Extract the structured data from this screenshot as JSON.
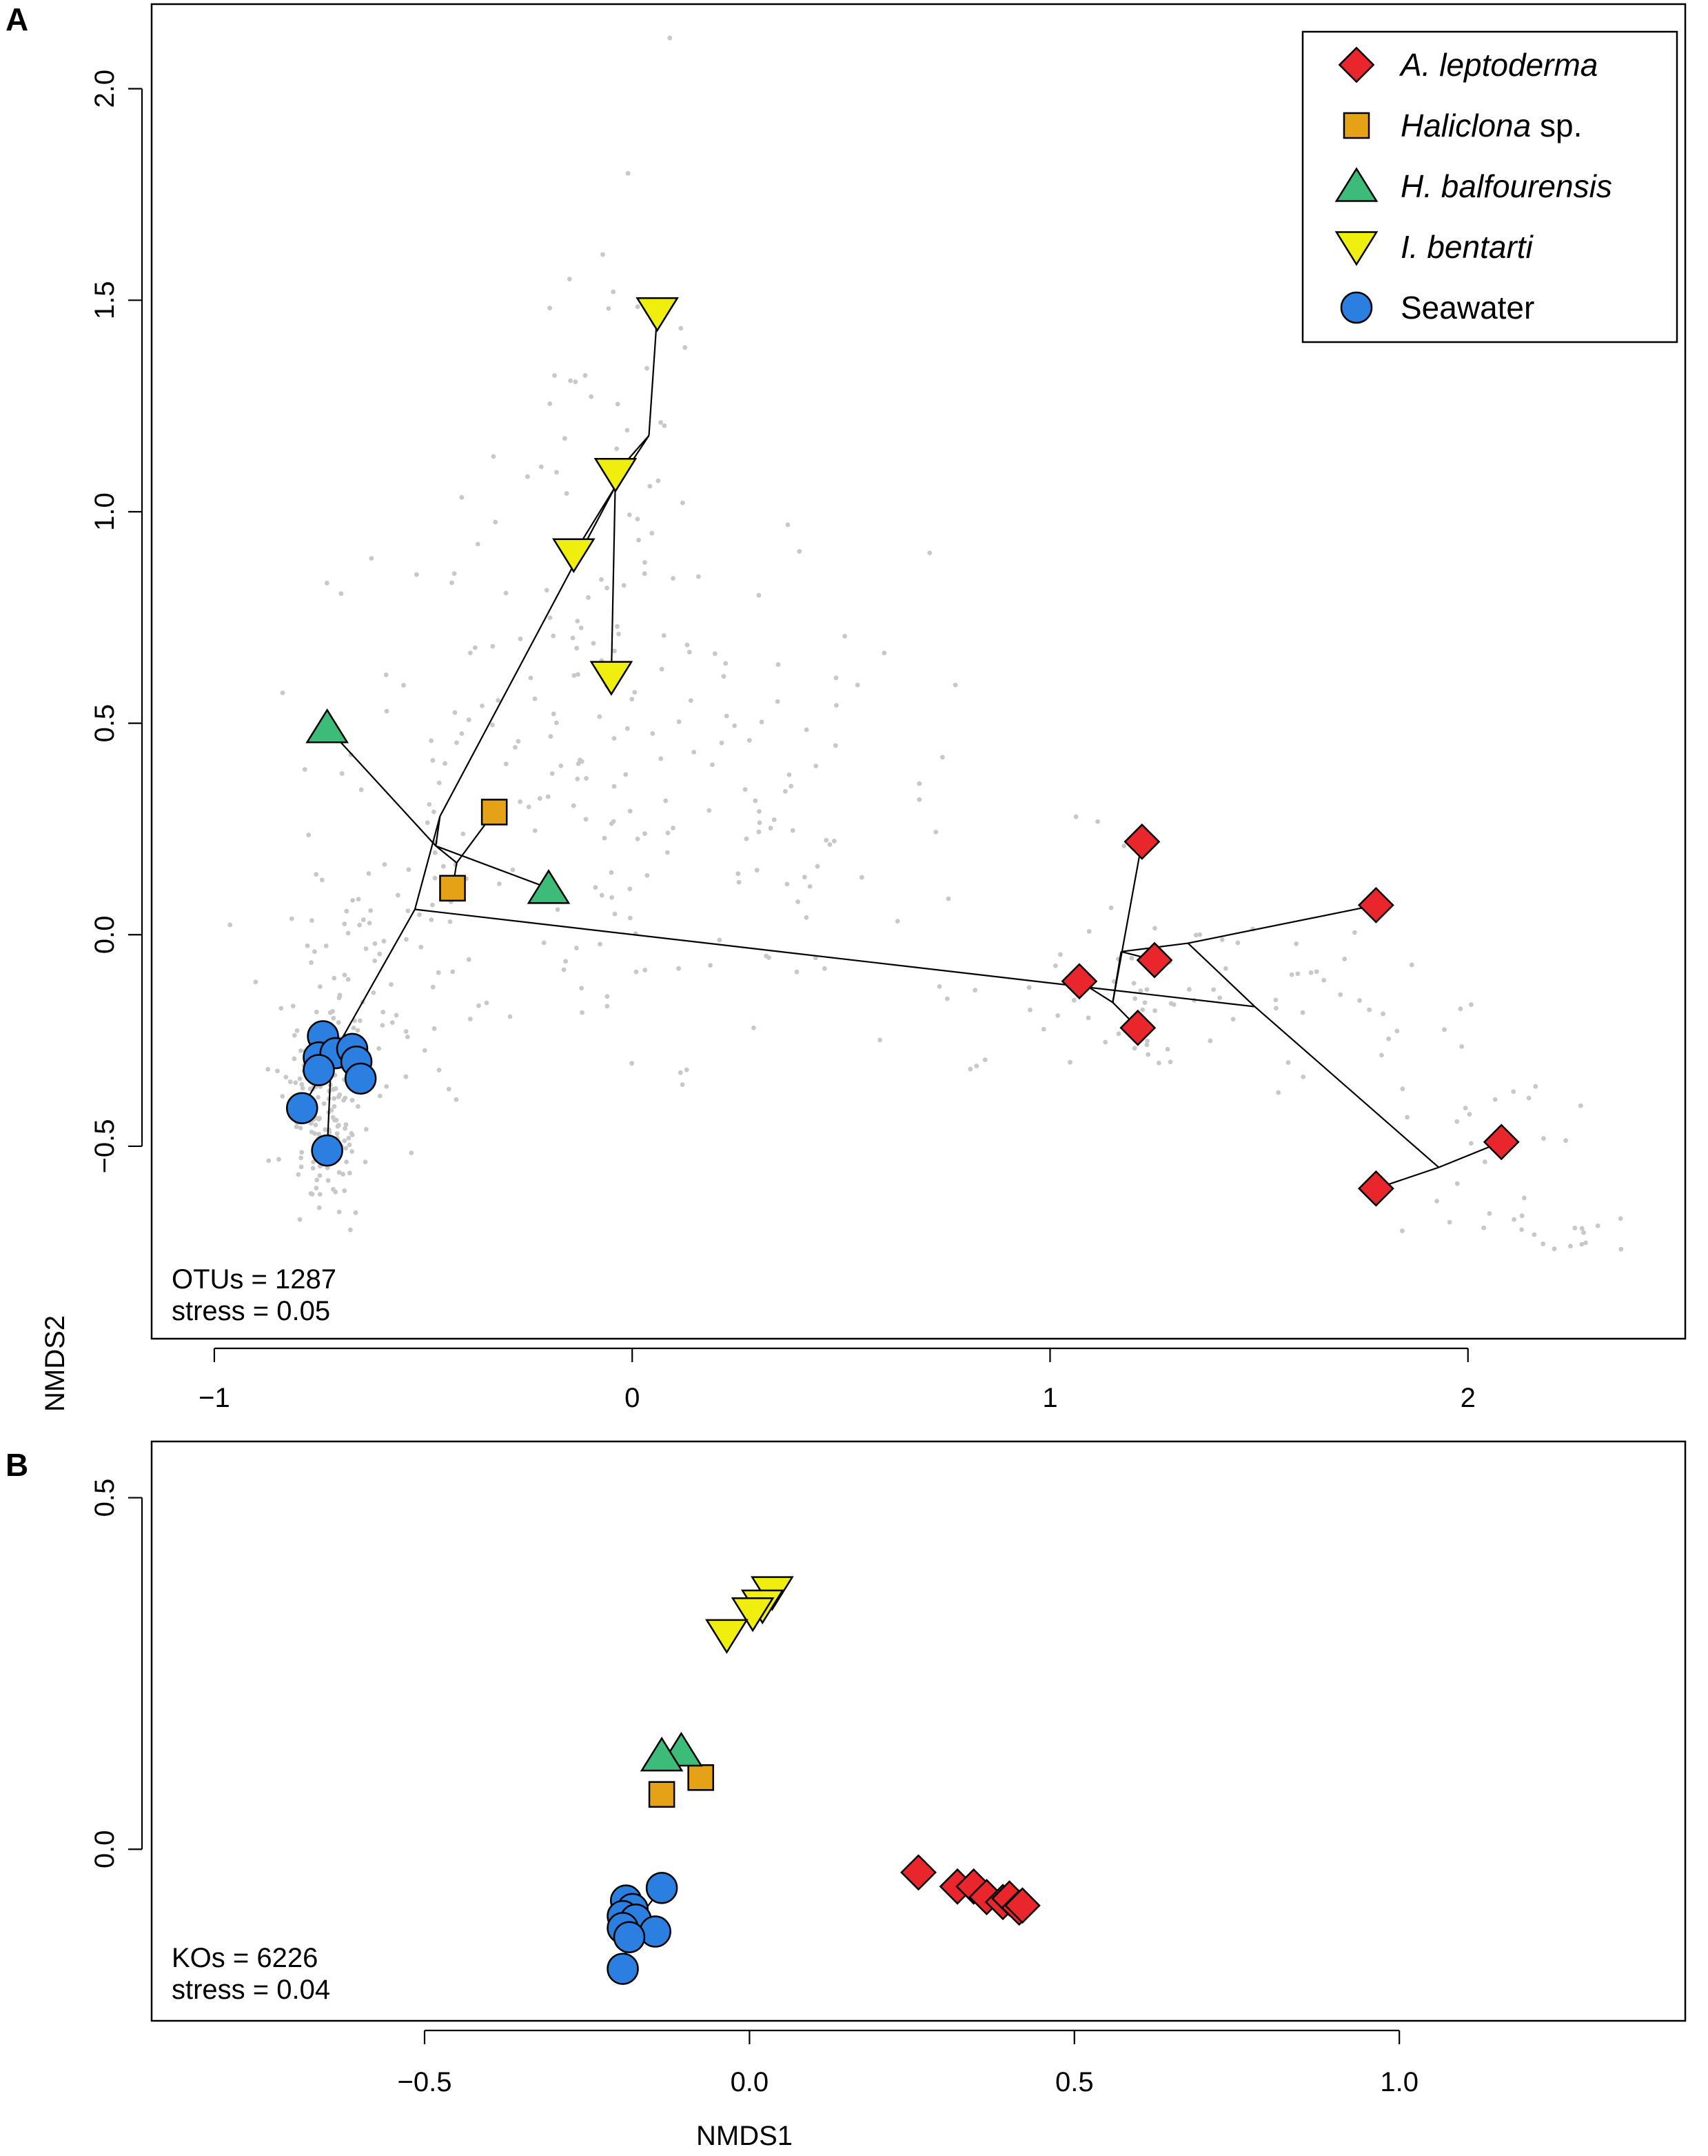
{
  "colors": {
    "A. leptoderma": "#e8262b",
    "Haliclona sp.": "#e6a217",
    "H. balfourensis": "#3cbb79",
    "I. bentarti": "#f0ee0c",
    "Seawater": "#2a7fe0",
    "otu_points": "#c8c8c8"
  },
  "shared": {
    "ylabel": "NMDS2",
    "xlabel": "NMDS1"
  },
  "legend": {
    "items": [
      {
        "group": "A. leptoderma",
        "italic": "A. leptoderma",
        "suffix": "",
        "shape": "diamond"
      },
      {
        "group": "Haliclona sp.",
        "italic": "Haliclona",
        "suffix": " sp.",
        "shape": "square"
      },
      {
        "group": "H. balfourensis",
        "italic": "H. balfourensis",
        "suffix": "",
        "shape": "triangle-up"
      },
      {
        "group": "I. bentarti",
        "italic": "I. bentarti",
        "suffix": "",
        "shape": "triangle-down"
      },
      {
        "group": "Seawater",
        "italic": "",
        "suffix": "Seawater",
        "shape": "circle"
      }
    ]
  },
  "chart_data": [
    {
      "panel": "A",
      "type": "scatter",
      "title": "",
      "xlabel": "",
      "ylabel": "NMDS2",
      "xlim": [
        -1.15,
        2.52
      ],
      "ylim": [
        -0.955,
        2.2
      ],
      "xticks": [
        -1,
        0,
        1,
        2
      ],
      "xtick_labels": [
        "−1",
        "0",
        "1",
        "2"
      ],
      "yticks": [
        -0.5,
        0.0,
        0.5,
        1.0,
        1.5,
        2.0
      ],
      "ytick_labels": [
        "−0.5",
        "0.0",
        "0.5",
        "1.0",
        "1.5",
        "2.0"
      ],
      "annotation": [
        "OTUs = 1287",
        "stress = 0.05"
      ],
      "background_points": "OTU scores (grey dots)",
      "series": [
        {
          "name": "A. leptoderma",
          "shape": "diamond",
          "points": [
            [
              1.22,
              0.22
            ],
            [
              1.78,
              0.07
            ],
            [
              1.25,
              -0.06
            ],
            [
              1.07,
              -0.11
            ],
            [
              1.21,
              -0.22
            ],
            [
              2.08,
              -0.49
            ],
            [
              1.78,
              -0.6
            ]
          ]
        },
        {
          "name": "Haliclona sp.",
          "shape": "square",
          "points": [
            [
              -0.33,
              0.29
            ],
            [
              -0.43,
              0.11
            ]
          ]
        },
        {
          "name": "H. balfourensis",
          "shape": "triangle-up",
          "points": [
            [
              -0.73,
              0.49
            ],
            [
              -0.2,
              0.11
            ]
          ]
        },
        {
          "name": "I. bentarti",
          "shape": "triangle-down",
          "points": [
            [
              0.06,
              1.47
            ],
            [
              -0.04,
              1.09
            ],
            [
              -0.14,
              0.9
            ],
            [
              -0.05,
              0.61
            ]
          ]
        },
        {
          "name": "Seawater",
          "shape": "circle",
          "points": [
            [
              -0.74,
              -0.24
            ],
            [
              -0.75,
              -0.29
            ],
            [
              -0.71,
              -0.28
            ],
            [
              -0.67,
              -0.27
            ],
            [
              -0.66,
              -0.3
            ],
            [
              -0.75,
              -0.32
            ],
            [
              -0.65,
              -0.34
            ],
            [
              -0.79,
              -0.41
            ],
            [
              -0.73,
              -0.51
            ]
          ]
        }
      ],
      "segments": [
        [
          [
            -0.52,
            0.06
          ],
          [
            -0.72,
            -0.29
          ]
        ],
        [
          [
            -0.52,
            0.06
          ],
          [
            1.49,
            -0.17
          ]
        ],
        [
          [
            -0.52,
            0.06
          ],
          [
            -0.46,
            0.28
          ]
        ],
        [
          [
            -0.46,
            0.28
          ],
          [
            -0.04,
            1.06
          ]
        ],
        [
          [
            -0.46,
            0.28
          ],
          [
            -0.47,
            0.21
          ]
        ],
        [
          [
            -0.04,
            1.06
          ],
          [
            0.04,
            1.18
          ]
        ],
        [
          [
            0.04,
            1.18
          ],
          [
            0.06,
            1.47
          ]
        ],
        [
          [
            0.04,
            1.18
          ],
          [
            -0.04,
            1.09
          ]
        ],
        [
          [
            -0.04,
            1.09
          ],
          [
            -0.05,
            0.61
          ]
        ],
        [
          [
            -0.14,
            0.9
          ],
          [
            -0.04,
            1.06
          ]
        ],
        [
          [
            -0.47,
            0.21
          ],
          [
            -0.73,
            0.49
          ]
        ],
        [
          [
            -0.47,
            0.21
          ],
          [
            -0.2,
            0.11
          ]
        ],
        [
          [
            -0.47,
            0.21
          ],
          [
            -0.42,
            0.17
          ]
        ],
        [
          [
            -0.42,
            0.17
          ],
          [
            -0.33,
            0.29
          ]
        ],
        [
          [
            -0.42,
            0.17
          ],
          [
            -0.43,
            0.11
          ]
        ],
        [
          [
            -0.72,
            -0.29
          ],
          [
            -0.74,
            -0.24
          ]
        ],
        [
          [
            -0.72,
            -0.29
          ],
          [
            -0.75,
            -0.29
          ]
        ],
        [
          [
            -0.72,
            -0.29
          ],
          [
            -0.71,
            -0.28
          ]
        ],
        [
          [
            -0.72,
            -0.29
          ],
          [
            -0.67,
            -0.27
          ]
        ],
        [
          [
            -0.72,
            -0.29
          ],
          [
            -0.66,
            -0.3
          ]
        ],
        [
          [
            -0.72,
            -0.29
          ],
          [
            -0.75,
            -0.32
          ]
        ],
        [
          [
            -0.72,
            -0.29
          ],
          [
            -0.65,
            -0.34
          ]
        ],
        [
          [
            -0.72,
            -0.29
          ],
          [
            -0.79,
            -0.41
          ]
        ],
        [
          [
            -0.72,
            -0.29
          ],
          [
            -0.73,
            -0.51
          ]
        ],
        [
          [
            1.49,
            -0.17
          ],
          [
            1.33,
            -0.02
          ]
        ],
        [
          [
            1.49,
            -0.17
          ],
          [
            1.93,
            -0.55
          ]
        ],
        [
          [
            1.33,
            -0.02
          ],
          [
            1.17,
            -0.04
          ]
        ],
        [
          [
            1.33,
            -0.02
          ],
          [
            1.78,
            0.07
          ]
        ],
        [
          [
            1.17,
            -0.04
          ],
          [
            1.25,
            -0.06
          ]
        ],
        [
          [
            1.17,
            -0.04
          ],
          [
            1.15,
            -0.16
          ]
        ],
        [
          [
            1.15,
            -0.16
          ],
          [
            1.22,
            0.22
          ]
        ],
        [
          [
            1.15,
            -0.16
          ],
          [
            1.07,
            -0.11
          ]
        ],
        [
          [
            1.15,
            -0.16
          ],
          [
            1.21,
            -0.22
          ]
        ],
        [
          [
            1.93,
            -0.55
          ],
          [
            2.08,
            -0.49
          ]
        ],
        [
          [
            1.93,
            -0.55
          ],
          [
            1.78,
            -0.6
          ]
        ]
      ]
    },
    {
      "panel": "B",
      "type": "scatter",
      "title": "",
      "xlabel": "NMDS1",
      "ylabel": "",
      "xlim": [
        -0.92,
        1.44
      ],
      "ylim": [
        -0.244,
        0.58
      ],
      "xticks": [
        -0.5,
        0.0,
        0.5,
        1.0
      ],
      "xtick_labels": [
        "−0.5",
        "0.0",
        "0.5",
        "1.0"
      ],
      "yticks": [
        0.0,
        0.5
      ],
      "ytick_labels": [
        "0.0",
        "0.5"
      ],
      "annotation": [
        "KOs = 6226",
        "stress = 0.04"
      ],
      "series": [
        {
          "name": "A. leptoderma",
          "shape": "diamond",
          "points": [
            [
              0.26,
              -0.033
            ],
            [
              0.32,
              -0.053
            ],
            [
              0.345,
              -0.053
            ],
            [
              0.365,
              -0.068
            ],
            [
              0.39,
              -0.075
            ],
            [
              0.4,
              -0.07
            ],
            [
              0.415,
              -0.083
            ],
            [
              0.42,
              -0.08
            ]
          ]
        },
        {
          "name": "Haliclona sp.",
          "shape": "square",
          "points": [
            [
              -0.075,
              0.102
            ],
            [
              -0.135,
              0.078
            ]
          ]
        },
        {
          "name": "H. balfourensis",
          "shape": "triangle-up",
          "points": [
            [
              -0.105,
              0.14
            ],
            [
              -0.135,
              0.133
            ]
          ]
        },
        {
          "name": "I. bentarti",
          "shape": "triangle-down",
          "points": [
            [
              0.035,
              0.366
            ],
            [
              0.02,
              0.347
            ],
            [
              0.005,
              0.336
            ],
            [
              -0.035,
              0.305
            ]
          ]
        },
        {
          "name": "Seawater",
          "shape": "circle",
          "points": [
            [
              -0.135,
              -0.055
            ],
            [
              -0.19,
              -0.073
            ],
            [
              -0.18,
              -0.085
            ],
            [
              -0.195,
              -0.095
            ],
            [
              -0.175,
              -0.1
            ],
            [
              -0.145,
              -0.117
            ],
            [
              -0.195,
              -0.112
            ],
            [
              -0.185,
              -0.125
            ],
            [
              -0.195,
              -0.17
            ]
          ]
        }
      ],
      "segments": [
        [
          [
            -0.185,
            -0.115
          ],
          [
            -0.135,
            -0.055
          ]
        ],
        [
          [
            -0.185,
            -0.115
          ],
          [
            -0.19,
            -0.073
          ]
        ],
        [
          [
            -0.185,
            -0.115
          ],
          [
            -0.145,
            -0.117
          ]
        ],
        [
          [
            -0.185,
            -0.115
          ],
          [
            -0.195,
            -0.17
          ]
        ]
      ]
    }
  ]
}
